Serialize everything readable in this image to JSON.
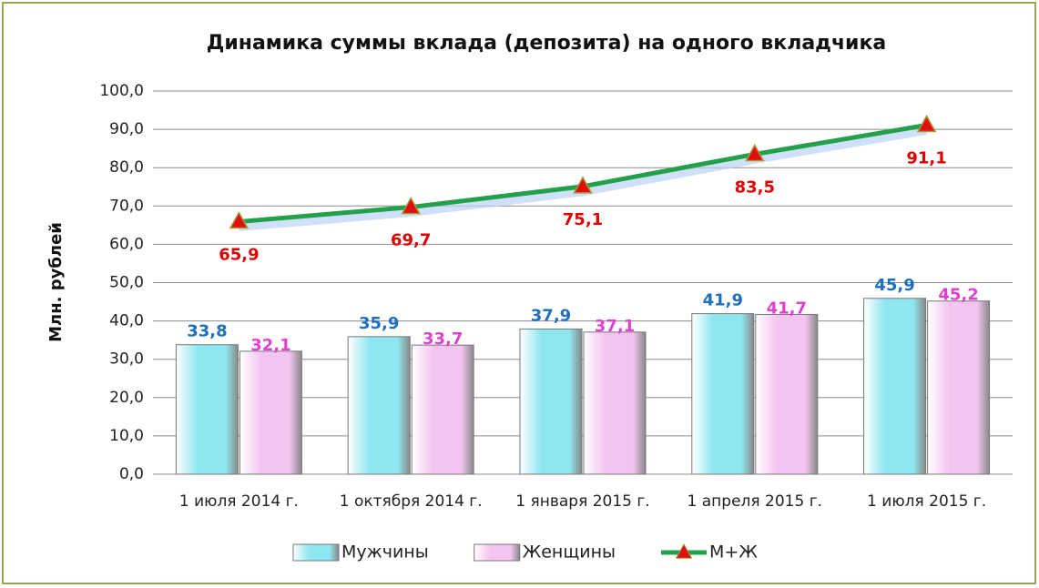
{
  "chart_data": {
    "type": "bar",
    "title": "Динамика суммы вклада (депозита) на одного вкладчика",
    "y_label": "Млн. рублей",
    "categories": [
      "1 июля 2014 г.",
      "1 октября 2014 г.",
      "1 января 2015 г.",
      "1 апреля 2015 г.",
      "1 июля 2015 г."
    ],
    "series": [
      {
        "name": "Мужчины",
        "type": "bar",
        "color": "#8ee6f0",
        "label_color": "#1f6fbf",
        "values": [
          33.8,
          35.9,
          37.9,
          41.9,
          45.9
        ],
        "value_labels": [
          "33,8",
          "35,9",
          "37,9",
          "41,9",
          "45,9"
        ]
      },
      {
        "name": "Женщины",
        "type": "bar",
        "color": "#f4c4f0",
        "label_color": "#e040d0",
        "values": [
          32.1,
          33.7,
          37.1,
          41.7,
          45.2
        ],
        "value_labels": [
          "32,1",
          "33,7",
          "37,1",
          "41,7",
          "45,2"
        ]
      },
      {
        "name": "М+Ж",
        "type": "line",
        "color": "#22a04a",
        "marker_color": "#e01010",
        "label_color": "#e00000",
        "values": [
          65.9,
          69.7,
          75.1,
          83.5,
          91.1
        ],
        "value_labels": [
          "65,9",
          "69,7",
          "75,1",
          "83,5",
          "91,1"
        ]
      }
    ],
    "ylim": [
      0,
      100
    ],
    "yticks": [
      {
        "value": 0,
        "label": "0,0"
      },
      {
        "value": 10,
        "label": "10,0"
      },
      {
        "value": 20,
        "label": "20,0"
      },
      {
        "value": 30,
        "label": "30,0"
      },
      {
        "value": 40,
        "label": "40,0"
      },
      {
        "value": 50,
        "label": "50,0"
      },
      {
        "value": 60,
        "label": "60,0"
      },
      {
        "value": 70,
        "label": "70,0"
      },
      {
        "value": 80,
        "label": "80,0"
      },
      {
        "value": 90,
        "label": "90,0"
      },
      {
        "value": 100,
        "label": "100,0"
      }
    ],
    "grid": true,
    "legend": "bottom"
  }
}
